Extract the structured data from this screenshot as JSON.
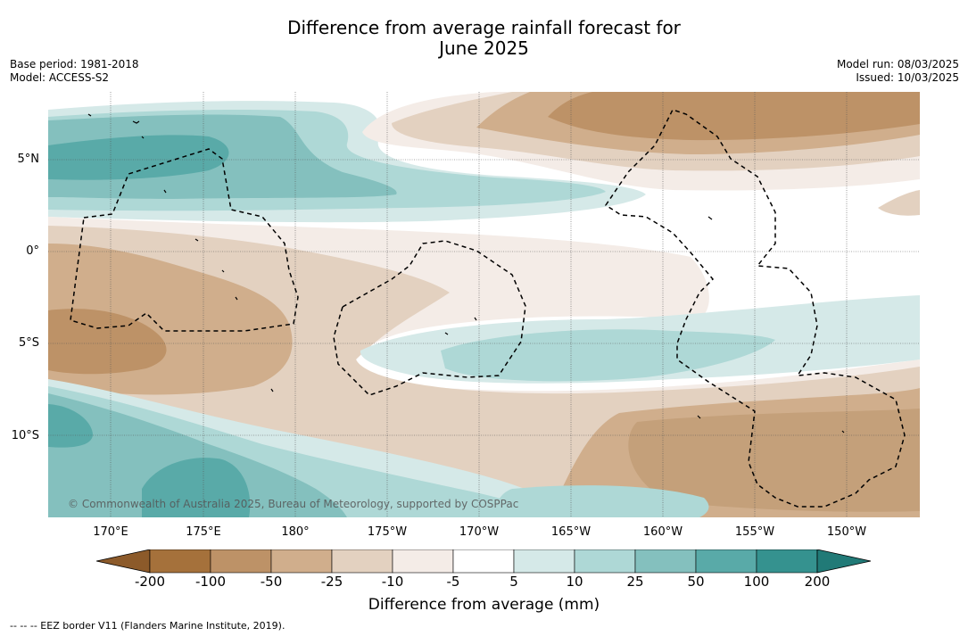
{
  "title_line1": "Difference from average rainfall forecast for",
  "title_line2": "June 2025",
  "base_period": "Base period: 1981-2018",
  "model": "Model: ACCESS-S2",
  "model_run": "Model run: 08/03/2025",
  "issued": "Issued: 10/03/2025",
  "lat_labels": [
    "5°N",
    "0°",
    "5°S",
    "10°S"
  ],
  "lon_labels": [
    "170°E",
    "175°E",
    "180°",
    "175°W",
    "170°W",
    "165°W",
    "160°W",
    "155°W",
    "150°W"
  ],
  "copyright": "© Commonwealth of Australia 2025, Bureau of Meteorology, supported by COSPPac",
  "colorbar": {
    "ticks": [
      "-200",
      "-100",
      "-50",
      "-25",
      "-10",
      "-5",
      "5",
      "10",
      "25",
      "50",
      "100",
      "200"
    ],
    "colors": [
      "#a5713b",
      "#bd9267",
      "#d0ae8c",
      "#e3d1c0",
      "#f4ece7",
      "#ffffff",
      "#d5e9e8",
      "#aed8d6",
      "#84c0be",
      "#59aaa8",
      "#35928f"
    ],
    "under_color": "#8c5a2a",
    "over_color": "#217a77",
    "label": "Difference from average (mm)"
  },
  "footnote": "--  --  -- EEZ border V11 (Flanders Marine Institute, 2019)."
}
